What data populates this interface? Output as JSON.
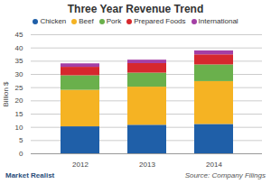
{
  "chart_data": {
    "type": "bar",
    "title": "Three Year Revenue Trend",
    "ylabel": "Billion $",
    "source": "Source: Company Filings",
    "footer": "Market Realist",
    "categories": [
      "2012",
      "2013",
      "2014"
    ],
    "series": [
      {
        "name": "Chicken",
        "color": "#1f5fa8",
        "values": [
          10.2,
          10.8,
          11.1
        ]
      },
      {
        "name": "Beef",
        "color": "#f5b323",
        "values": [
          13.8,
          14.4,
          16.2
        ]
      },
      {
        "name": "Pork",
        "color": "#6ab04c",
        "values": [
          5.5,
          5.3,
          6.3
        ]
      },
      {
        "name": "Prepared Foods",
        "color": "#d6282e",
        "values": [
          3.2,
          3.6,
          3.8
        ]
      },
      {
        "name": "International",
        "color": "#a43fa5",
        "values": [
          1.3,
          1.3,
          1.5
        ]
      }
    ],
    "ylim": [
      0,
      45
    ],
    "yticks": [
      0,
      5,
      10,
      15,
      20,
      25,
      30,
      35,
      40,
      45
    ],
    "stacked": true,
    "grid": true,
    "legend": "top"
  }
}
